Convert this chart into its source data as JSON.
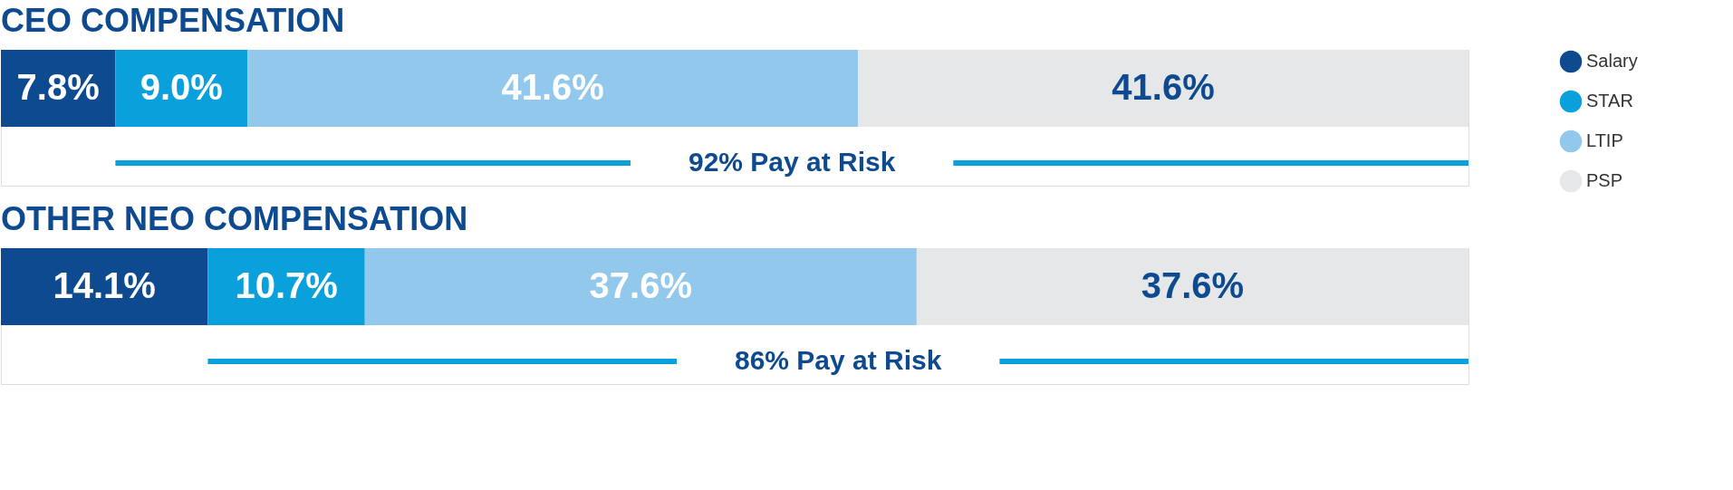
{
  "chart_data": [
    {
      "type": "bar",
      "title": "CEO COMPENSATION",
      "orientation": "horizontal",
      "stacked": true,
      "categories": [
        null
      ],
      "xlim": [
        0,
        100
      ],
      "tick_labels": false,
      "legend": "right",
      "annotations": [
        "92% Pay at Risk"
      ],
      "series": [
        {
          "name": "Salary",
          "color": "#0d4a8f",
          "values": [
            7.8
          ],
          "value_labels": [
            "7.8%"
          ]
        },
        {
          "name": "STAR",
          "color": "#0aa0dc",
          "values": [
            9.0
          ],
          "value_labels": [
            "9.0%"
          ]
        },
        {
          "name": "LTIP",
          "color": "#92c8ec",
          "values": [
            41.6
          ],
          "value_labels": [
            "41.6%"
          ]
        },
        {
          "name": "PSP",
          "color": "#e6e7e9",
          "values": [
            41.6
          ],
          "value_labels": [
            "41.6%"
          ]
        }
      ]
    },
    {
      "type": "bar",
      "title": "OTHER NEO COMPENSATION",
      "orientation": "horizontal",
      "stacked": true,
      "categories": [
        null
      ],
      "xlim": [
        0,
        100
      ],
      "tick_labels": false,
      "annotations": [
        "86% Pay at Risk"
      ],
      "series": [
        {
          "color": "#0d4a8f",
          "values": [
            14.1
          ],
          "value_labels": [
            "14.1%"
          ]
        },
        {
          "color": "#0aa0dc",
          "values": [
            10.7
          ],
          "value_labels": [
            "10.7%"
          ]
        },
        {
          "color": "#92c8ec",
          "values": [
            37.6
          ],
          "value_labels": [
            "37.6%"
          ]
        },
        {
          "color": "#e6e7e9",
          "values": [
            37.6
          ],
          "value_labels": [
            "37.6%"
          ]
        }
      ]
    }
  ]
}
